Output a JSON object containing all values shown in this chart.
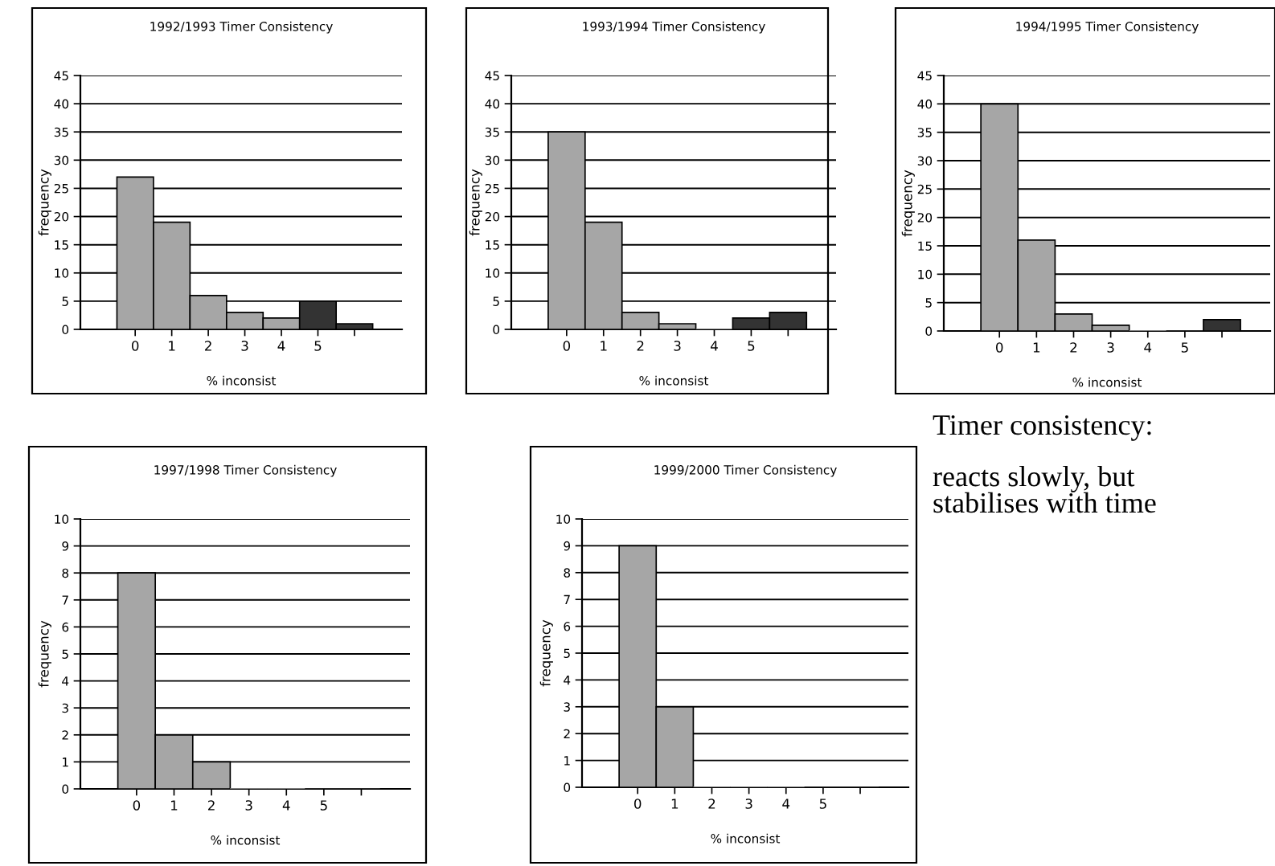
{
  "chart_data": [
    {
      "type": "bar",
      "title": "1992/1993 Timer Consistency",
      "xlabel": "% inconsist",
      "ylabel": "frequency",
      "categories": [
        "0",
        "1",
        "2",
        "3",
        "4",
        "5",
        null
      ],
      "values": [
        27,
        19,
        6,
        3,
        2,
        5,
        1
      ],
      "colors": [
        "#a6a6a6",
        "#a6a6a6",
        "#a6a6a6",
        "#a6a6a6",
        "#a6a6a6",
        "#333333",
        "#333333"
      ],
      "ylim": [
        0,
        45
      ],
      "yticks": [
        0,
        5,
        10,
        15,
        20,
        25,
        30,
        35,
        40,
        45
      ],
      "grid": "y"
    },
    {
      "type": "bar",
      "title": "1993/1994 Timer Consistency",
      "xlabel": "% inconsist",
      "ylabel": "frequency",
      "categories": [
        "0",
        "1",
        "2",
        "3",
        "4",
        "5",
        null
      ],
      "values": [
        35,
        19,
        3,
        1,
        0,
        2,
        3
      ],
      "colors": [
        "#a6a6a6",
        "#a6a6a6",
        "#a6a6a6",
        "#a6a6a6",
        "#a6a6a6",
        "#333333",
        "#333333"
      ],
      "ylim": [
        0,
        45
      ],
      "yticks": [
        0,
        5,
        10,
        15,
        20,
        25,
        30,
        35,
        40,
        45
      ],
      "grid": "y"
    },
    {
      "type": "bar",
      "title": "1994/1995 Timer Consistency",
      "xlabel": "% inconsist",
      "ylabel": "frequency",
      "categories": [
        "0",
        "1",
        "2",
        "3",
        "4",
        "5",
        null
      ],
      "values": [
        40,
        16,
        3,
        1,
        0,
        0,
        2
      ],
      "colors": [
        "#a6a6a6",
        "#a6a6a6",
        "#a6a6a6",
        "#a6a6a6",
        "#a6a6a6",
        "#333333",
        "#333333"
      ],
      "ylim": [
        0,
        45
      ],
      "yticks": [
        0,
        5,
        10,
        15,
        20,
        25,
        30,
        35,
        40,
        45
      ],
      "grid": "y"
    },
    {
      "type": "bar",
      "title": "1997/1998 Timer Consistency",
      "xlabel": "% inconsist",
      "ylabel": "frequency",
      "categories": [
        "0",
        "1",
        "2",
        "3",
        "4",
        "5",
        null
      ],
      "values": [
        8,
        2,
        1,
        0,
        0,
        0,
        0
      ],
      "colors": [
        "#a6a6a6",
        "#a6a6a6",
        "#a6a6a6",
        "#a6a6a6",
        "#a6a6a6",
        "#333333",
        "#333333"
      ],
      "ylim": [
        0,
        10
      ],
      "yticks": [
        0,
        1,
        2,
        3,
        4,
        5,
        6,
        7,
        8,
        9,
        10
      ],
      "grid": "y"
    },
    {
      "type": "bar",
      "title": "1999/2000 Timer Consistency",
      "xlabel": "% inconsist",
      "ylabel": "frequency",
      "categories": [
        "0",
        "1",
        "2",
        "3",
        "4",
        "5",
        null
      ],
      "values": [
        9,
        3,
        0,
        0,
        0,
        0,
        0
      ],
      "colors": [
        "#a6a6a6",
        "#a6a6a6",
        "#a6a6a6",
        "#a6a6a6",
        "#a6a6a6",
        "#333333",
        "#333333"
      ],
      "ylim": [
        0,
        10
      ],
      "yticks": [
        0,
        1,
        2,
        3,
        4,
        5,
        6,
        7,
        8,
        9,
        10
      ],
      "grid": "y"
    },
    {
      "type": "other",
      "annotations": [
        "Timer consistency:",
        "reacts slowly, but\nstabilises with time"
      ]
    }
  ]
}
